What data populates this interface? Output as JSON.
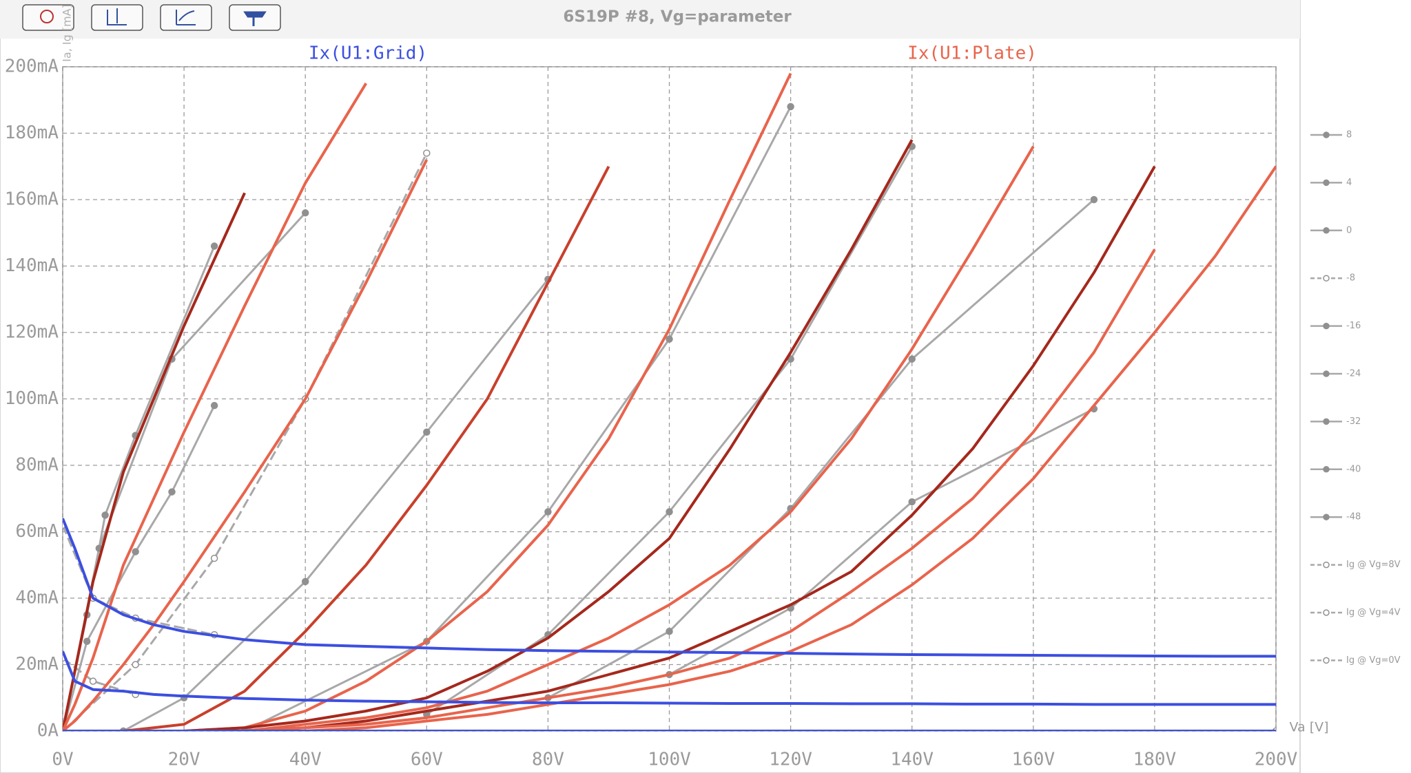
{
  "chart_data": {
    "type": "line",
    "title": "6S19P #8, Vg=parameter",
    "x_label": "Va [V]",
    "y_label": "Ia, Ig [mA]",
    "grid_trace_label": "Ix(U1:Grid)",
    "plate_trace_label": "Ix(U1:Plate)",
    "grid": true,
    "xlim": [
      0,
      200
    ],
    "ylim": [
      0,
      200
    ],
    "xticks": [
      {
        "value": 0,
        "label": "0V"
      },
      {
        "value": 20,
        "label": "20V"
      },
      {
        "value": 40,
        "label": "40V"
      },
      {
        "value": 60,
        "label": "60V"
      },
      {
        "value": 80,
        "label": "80V"
      },
      {
        "value": 100,
        "label": "100V"
      },
      {
        "value": 120,
        "label": "120V"
      },
      {
        "value": 140,
        "label": "140V"
      },
      {
        "value": 160,
        "label": "160V"
      },
      {
        "value": 180,
        "label": "180V"
      },
      {
        "value": 200,
        "label": "200V"
      }
    ],
    "yticks": [
      {
        "value": 0,
        "label": "0A"
      },
      {
        "value": 20,
        "label": "20mA"
      },
      {
        "value": 40,
        "label": "40mA"
      },
      {
        "value": 60,
        "label": "60mA"
      },
      {
        "value": 80,
        "label": "80mA"
      },
      {
        "value": 100,
        "label": "100mA"
      },
      {
        "value": 120,
        "label": "120mA"
      },
      {
        "value": 140,
        "label": "140mA"
      },
      {
        "value": 160,
        "label": "160mA"
      },
      {
        "value": 180,
        "label": "180mA"
      },
      {
        "value": 200,
        "label": "200mA"
      }
    ],
    "x": [
      0,
      2,
      5,
      10,
      15,
      20,
      30,
      40,
      50,
      60,
      70,
      80,
      90,
      100,
      110,
      120,
      130,
      140,
      150,
      160,
      170,
      180,
      190,
      200
    ],
    "series": [
      {
        "color": "#a5281c",
        "values": [
          0,
          18,
          45,
          78,
          100,
          122,
          162,
          null,
          null,
          null,
          null,
          null,
          null,
          null,
          null,
          null,
          null,
          null,
          null,
          null,
          null,
          null,
          null,
          null
        ]
      },
      {
        "color": "#e8644c",
        "values": [
          0,
          8,
          22,
          50,
          70,
          90,
          128,
          165,
          195,
          null,
          null,
          null,
          null,
          null,
          null,
          null,
          null,
          null,
          null,
          null,
          null,
          null,
          null,
          null
        ]
      },
      {
        "color": "#e8644c",
        "values": [
          0,
          3,
          9,
          20,
          32,
          45,
          72,
          100,
          135,
          172,
          null,
          null,
          null,
          null,
          null,
          null,
          null,
          null,
          null,
          null,
          null,
          null,
          null,
          null
        ]
      },
      {
        "color": "#c8402c",
        "values": [
          0,
          0,
          0,
          0,
          1,
          2,
          12,
          30,
          50,
          74,
          100,
          135,
          170,
          null,
          null,
          null,
          null,
          null,
          null,
          null,
          null,
          null,
          null,
          null
        ]
      },
      {
        "color": "#e8644c",
        "values": [
          0,
          0,
          0,
          0,
          0,
          0,
          1,
          6,
          15,
          27,
          42,
          62,
          88,
          121,
          160,
          198,
          null,
          null,
          null,
          null,
          null,
          null,
          null,
          null
        ]
      },
      {
        "color": "#a5281c",
        "values": [
          0,
          0,
          0,
          0,
          0,
          0,
          1,
          3,
          6,
          10,
          18,
          28,
          42,
          58,
          85,
          114,
          145,
          178,
          null,
          null,
          null,
          null,
          null,
          null
        ]
      },
      {
        "color": "#e8644c",
        "values": [
          0,
          0,
          0,
          0,
          0,
          0,
          0,
          2,
          4,
          7,
          12,
          20,
          28,
          38,
          50,
          66,
          88,
          115,
          145,
          176,
          null,
          null,
          null,
          null
        ]
      },
      {
        "color": "#a5281c",
        "values": [
          0,
          0,
          0,
          0,
          0,
          0,
          0,
          1,
          3,
          6,
          9,
          12,
          17,
          22,
          30,
          38,
          48,
          65,
          85,
          110,
          138,
          170,
          null,
          null
        ]
      },
      {
        "color": "#e8644c",
        "values": [
          0,
          0,
          0,
          0,
          0,
          0,
          0,
          1,
          2,
          4,
          7,
          10,
          13,
          17,
          22,
          30,
          42,
          55,
          70,
          90,
          114,
          145,
          null,
          null
        ]
      },
      {
        "color": "#e8644c",
        "values": [
          0,
          0,
          0,
          0,
          0,
          0,
          0,
          0,
          1,
          3,
          5,
          8,
          11,
          14,
          18,
          24,
          32,
          44,
          58,
          76,
          98,
          120,
          143,
          170
        ]
      },
      {
        "color": "#3c4fe0",
        "values": [
          64,
          55,
          40,
          35,
          32,
          30,
          27.5,
          26,
          25.5,
          25,
          24.5,
          24.2,
          24,
          23.8,
          23.6,
          23.4,
          23.2,
          23,
          22.9,
          22.8,
          22.7,
          22.6,
          22.5,
          22.5
        ]
      },
      {
        "color": "#3c4fe0",
        "values": [
          24,
          15,
          12.5,
          12,
          11,
          10.5,
          9.8,
          9.3,
          9,
          8.8,
          8.6,
          8.5,
          8.5,
          8.4,
          8.3,
          8.3,
          8.2,
          8.2,
          8.1,
          8.1,
          8,
          8,
          8,
          8
        ]
      },
      {
        "color": "#3c4fe0",
        "values": [
          0,
          0,
          0,
          0,
          0,
          0,
          0,
          0,
          0,
          0,
          0,
          0,
          0,
          0,
          0,
          0,
          0,
          0,
          0,
          0,
          0,
          0,
          0,
          0
        ]
      }
    ],
    "measured": [
      {
        "name": "8",
        "color": "#a8a8a8",
        "dashed": false,
        "x": [
          0,
          4,
          7,
          12,
          25
        ],
        "values": [
          0,
          35,
          65,
          89,
          146
        ]
      },
      {
        "name": "4",
        "color": "#a8a8a8",
        "dashed": false,
        "x": [
          0,
          6,
          18,
          40
        ],
        "values": [
          0,
          55,
          112,
          156
        ]
      },
      {
        "name": "0",
        "color": "#a8a8a8",
        "dashed": false,
        "x": [
          0,
          4,
          12,
          18,
          25
        ],
        "values": [
          0,
          27,
          54,
          72,
          98
        ]
      },
      {
        "name": "-8",
        "color": "#a8a8a8",
        "dashed": true,
        "x": [
          0,
          12,
          25,
          40,
          60
        ],
        "values": [
          0,
          20,
          52,
          100,
          174
        ]
      },
      {
        "name": "-16",
        "color": "#a8a8a8",
        "dashed": false,
        "x": [
          10,
          20,
          40,
          60,
          80
        ],
        "values": [
          0,
          10,
          45,
          90,
          136
        ]
      },
      {
        "name": "-24",
        "color": "#a8a8a8",
        "dashed": false,
        "x": [
          30,
          60,
          80,
          100,
          120
        ],
        "values": [
          0,
          27,
          66,
          118,
          188
        ]
      },
      {
        "name": "-32",
        "color": "#a8a8a8",
        "dashed": false,
        "x": [
          60,
          80,
          100,
          120,
          140
        ],
        "values": [
          5,
          29,
          66,
          112,
          176
        ]
      },
      {
        "name": "-40",
        "color": "#a8a8a8",
        "dashed": false,
        "x": [
          80,
          100,
          120,
          140,
          170
        ],
        "values": [
          10,
          30,
          67,
          112,
          160
        ]
      },
      {
        "name": "-48",
        "color": "#a8a8a8",
        "dashed": false,
        "x": [
          100,
          120,
          140,
          170
        ],
        "values": [
          17,
          37,
          69,
          97
        ]
      },
      {
        "name": "Ig @ Vg=8V",
        "color": "#a8a8a8",
        "dashed": true,
        "x": [
          0,
          5,
          12,
          25
        ],
        "values": [
          62,
          40,
          34,
          29
        ]
      },
      {
        "name": "Ig @ Vg=4V",
        "color": "#a8a8a8",
        "dashed": true,
        "x": [
          0,
          5,
          12
        ],
        "values": [
          22,
          15,
          11
        ]
      },
      {
        "name": "Ig @ Vg=0V",
        "color": "#a8a8a8",
        "dashed": true,
        "x": [
          0,
          200
        ],
        "values": [
          0,
          0
        ]
      }
    ]
  }
}
